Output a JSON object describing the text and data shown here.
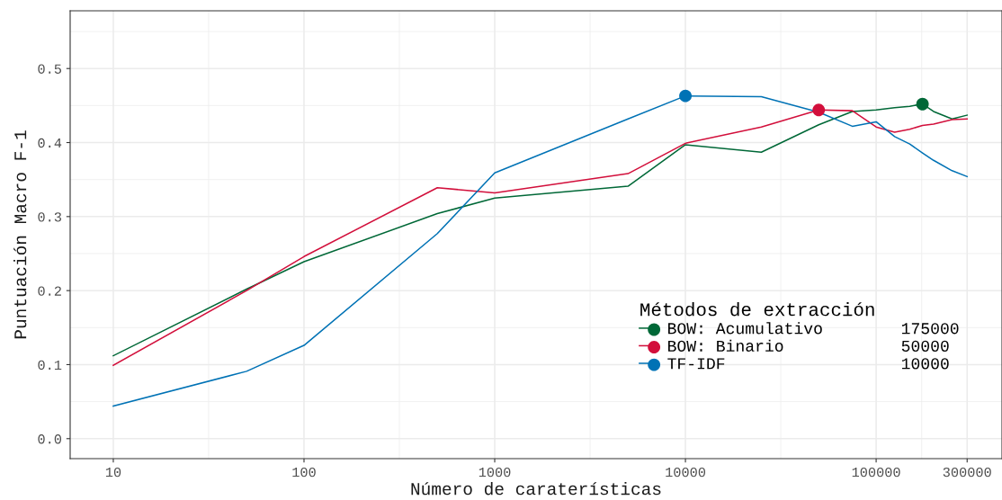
{
  "chart_data": {
    "type": "line",
    "xlabel": "Número de caraterísticas",
    "ylabel": "Puntuación Macro F-1",
    "legend_title": "Métodos de extracción",
    "xlim": [
      5.94,
      457000
    ],
    "ylim": [
      -0.027,
      0.578
    ],
    "log": "x",
    "grid": true,
    "legend": "bottom right",
    "marker": "none",
    "xticks": [
      10,
      100,
      1000,
      10000,
      100000,
      300000
    ],
    "yticks": [
      {
        "value": 0,
        "label": "0.0"
      },
      {
        "value": 0.1,
        "label": "0.1"
      },
      {
        "value": 0.2,
        "label": "0.2"
      },
      {
        "value": 0.3,
        "label": "0.3"
      },
      {
        "value": 0.4,
        "label": "0.4"
      },
      {
        "value": 0.5,
        "label": "0.5"
      }
    ],
    "x": [
      10,
      50,
      100,
      500,
      1000,
      5000,
      10000,
      25000,
      50000,
      75000,
      100000,
      125000,
      150000,
      175000,
      200000,
      250000,
      300000
    ],
    "series": [
      {
        "name": "BOW: Acumulativo        175000",
        "color": "#006837",
        "values": [
          0.112,
          0.202,
          0.239,
          0.304,
          0.325,
          0.341,
          0.397,
          0.387,
          0.424,
          0.442,
          0.444,
          0.447,
          0.449,
          0.452,
          0.442,
          0.432,
          0.437
        ]
      },
      {
        "name": "BOW: Binario            50000",
        "color": "#d20f3b",
        "values": [
          0.099,
          0.2,
          0.246,
          0.339,
          0.332,
          0.358,
          0.399,
          0.421,
          0.444,
          0.443,
          0.421,
          0.414,
          0.418,
          0.423,
          0.425,
          0.431,
          0.432
        ]
      },
      {
        "name": "TF-IDF                  10000",
        "color": "#0072b5",
        "values": [
          0.044,
          0.091,
          0.126,
          0.277,
          0.359,
          0.432,
          0.463,
          0.462,
          0.441,
          0.422,
          0.428,
          0.408,
          0.398,
          0.386,
          0.376,
          0.362,
          0.354
        ]
      },
      {
        "type": "scatter",
        "marker": "circle",
        "color": "#006837",
        "x": [
          175000
        ],
        "values": [
          0.452
        ]
      },
      {
        "type": "scatter",
        "marker": "circle",
        "color": "#d20f3b",
        "x": [
          50000
        ],
        "values": [
          0.444
        ]
      },
      {
        "type": "scatter",
        "marker": "circle",
        "color": "#0072b5",
        "x": [
          10000
        ],
        "values": [
          0.463
        ]
      }
    ]
  }
}
